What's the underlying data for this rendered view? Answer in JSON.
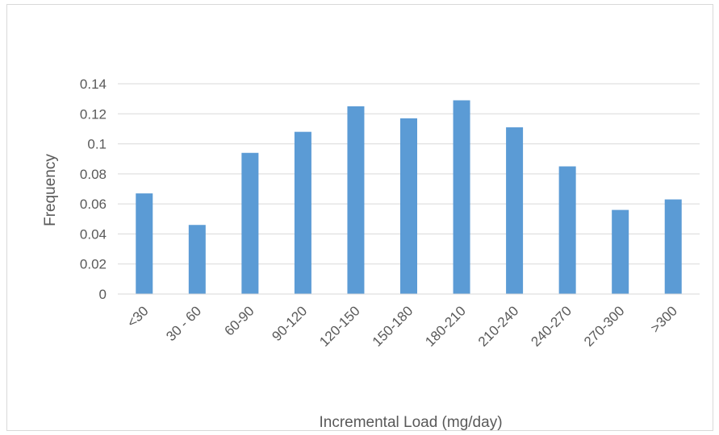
{
  "chart_data": {
    "type": "bar",
    "title": "",
    "xlabel": "Incremental Load (mg/day)",
    "ylabel": "Frequency",
    "categories": [
      "<30",
      "30 - 60",
      "60-90",
      "90-120",
      "120-150",
      "150-180",
      "180-210",
      "210-240",
      "240-270",
      "270-300",
      ">300"
    ],
    "values": [
      0.067,
      0.046,
      0.094,
      0.108,
      0.125,
      0.117,
      0.129,
      0.111,
      0.085,
      0.056,
      0.063
    ],
    "ylim": [
      0,
      0.14
    ],
    "yticks": [
      0,
      0.02,
      0.04,
      0.06,
      0.08,
      0.1,
      0.12,
      0.14
    ],
    "ytick_labels": [
      "0",
      "0.02",
      "0.04",
      "0.06",
      "0.08",
      "0.1",
      "0.12",
      "0.14"
    ],
    "grid": true,
    "legend": "none",
    "bar_color": "#5b9bd5",
    "grid_color": "#d9d9d9"
  }
}
